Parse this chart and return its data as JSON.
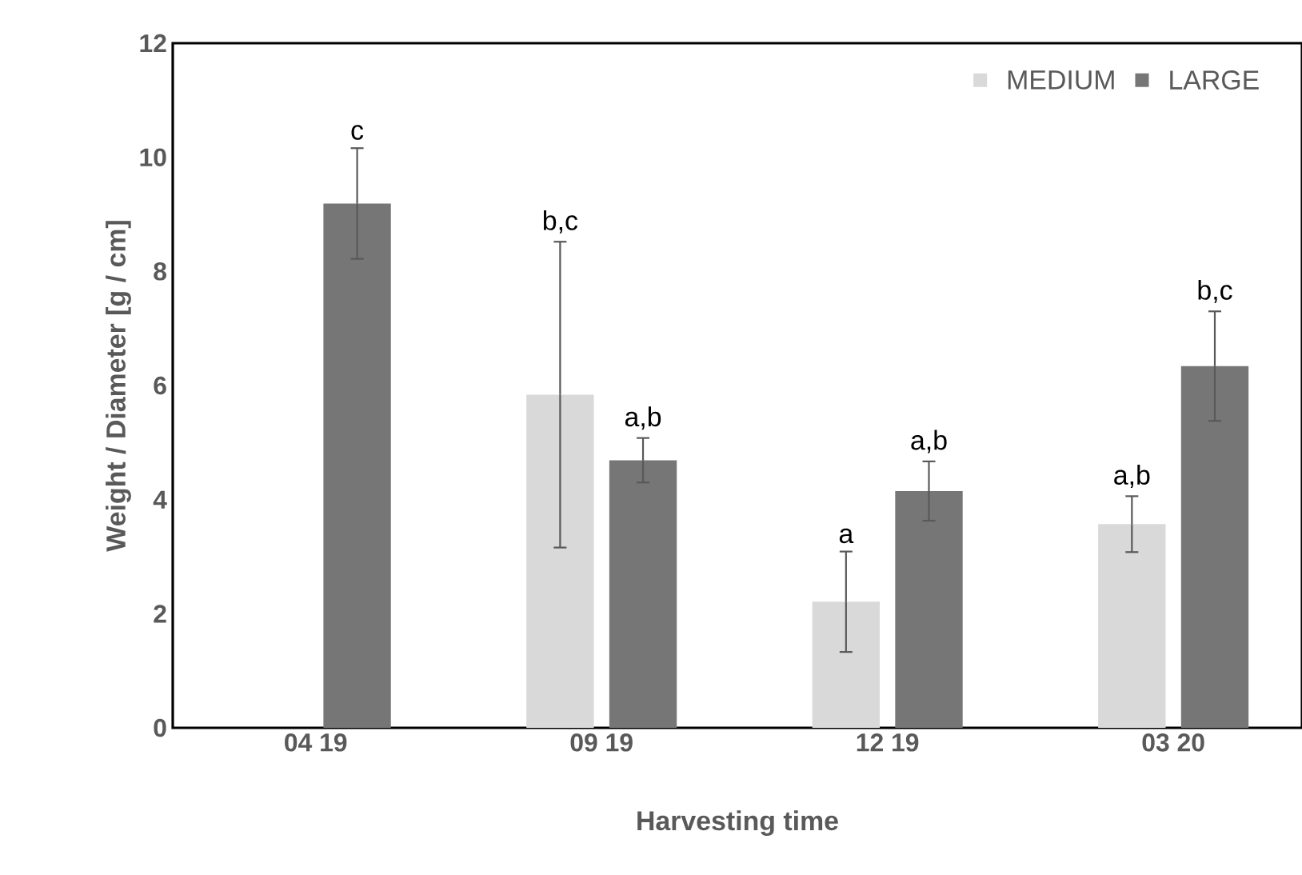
{
  "chart_data": {
    "type": "bar",
    "xlabel": "Harvesting time",
    "ylabel": "Weight / Diameter [g / cm]",
    "categories": [
      "04 19",
      "09 19",
      "12 19",
      "03 20"
    ],
    "series": [
      {
        "name": "MEDIUM",
        "color": "#d9d9d9",
        "values": [
          null,
          5.84,
          2.21,
          3.57
        ],
        "errors": [
          null,
          2.68,
          0.88,
          0.49
        ]
      },
      {
        "name": "LARGE",
        "color": "#767676",
        "values": [
          9.19,
          4.69,
          4.15,
          6.34
        ],
        "errors": [
          0.97,
          0.39,
          0.52,
          0.96
        ]
      }
    ],
    "ylim": [
      0,
      12
    ],
    "yticks": [
      0,
      2,
      4,
      6,
      8,
      10,
      12
    ],
    "grid": false,
    "legend": "top right",
    "annotations": [
      "c",
      "b,c",
      "a,b",
      "a",
      "a,b",
      "a,b",
      "b,c"
    ]
  }
}
